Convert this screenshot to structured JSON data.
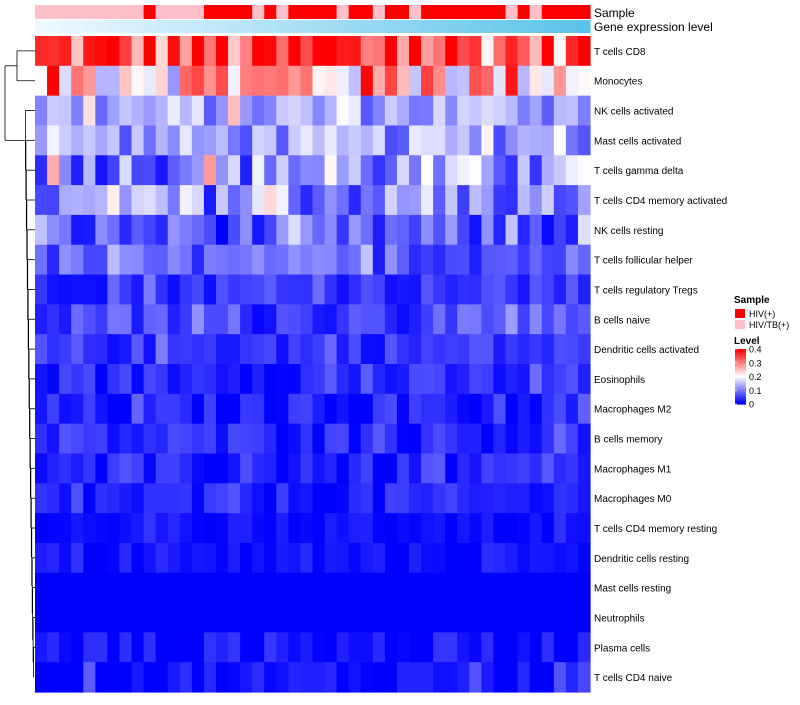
{
  "chart_data": {
    "type": "heatmap",
    "annotation_labels": {
      "sample": "Sample",
      "expression": "Gene expression level"
    },
    "rows": [
      "T cells CD8",
      "Monocytes",
      "NK cells activated",
      "Mast cells activated",
      "T cells gamma delta",
      "T cells CD4 memory activated",
      "NK cells resting",
      "T cells follicular helper",
      "T cells regulatory  Tregs",
      "B cells naive",
      "Dendritic cells activated",
      "Eosinophils",
      "Macrophages M2",
      "B cells memory",
      "Macrophages M1",
      "Macrophages M0",
      "T cells CD4 memory resting",
      "Dendritic cells resting",
      "Mast cells resting",
      "Neutrophils",
      "Plasma cells",
      "T cells CD4 naive"
    ],
    "n_columns": 46,
    "sample_groups": [
      "HIV/TB(+)",
      "HIV/TB(+)",
      "HIV/TB(+)",
      "HIV/TB(+)",
      "HIV/TB(+)",
      "HIV/TB(+)",
      "HIV/TB(+)",
      "HIV/TB(+)",
      "HIV/TB(+)",
      "HIV(+)",
      "HIV/TB(+)",
      "HIV/TB(+)",
      "HIV/TB(+)",
      "HIV/TB(+)",
      "HIV(+)",
      "HIV(+)",
      "HIV(+)",
      "HIV(+)",
      "HIV/TB(+)",
      "HIV(+)",
      "HIV/TB(+)",
      "HIV(+)",
      "HIV(+)",
      "HIV(+)",
      "HIV(+)",
      "HIV/TB(+)",
      "HIV(+)",
      "HIV(+)",
      "HIV/TB(+)",
      "HIV(+)",
      "HIV(+)",
      "HIV/TB(+)",
      "HIV(+)",
      "HIV(+)",
      "HIV(+)",
      "HIV(+)",
      "HIV(+)",
      "HIV(+)",
      "HIV(+)",
      "HIV/TB(+)",
      "HIV(+)",
      "HIV/TB(+)",
      "HIV(+)",
      "HIV(+)",
      "HIV(+)",
      "HIV(+)"
    ],
    "legend": {
      "sample_title": "Sample",
      "sample_items": [
        {
          "label": "HIV(+)",
          "color": "#ff0000"
        },
        {
          "label": "HIV/TB(+)",
          "color": "#ffc0cb"
        }
      ],
      "level_title": "Level",
      "level_ticks": [
        {
          "label": "0.4",
          "value": 0.4
        },
        {
          "label": "0.3",
          "value": 0.3
        },
        {
          "label": "0.2",
          "value": 0.2
        },
        {
          "label": "0.1",
          "value": 0.1
        },
        {
          "label": "0",
          "value": 0.0
        }
      ],
      "value_range": [
        0,
        0.4
      ]
    },
    "colors": {
      "low": "#0000ff",
      "mid": "#ffffff",
      "high": "#ff0000"
    },
    "row_mean_levels": [
      0.33,
      0.26,
      0.13,
      0.12,
      0.11,
      0.1,
      0.06,
      0.07,
      0.04,
      0.05,
      0.04,
      0.03,
      0.02,
      0.03,
      0.02,
      0.02,
      0.01,
      0.01,
      0.0,
      0.0,
      0.01,
      0.01
    ],
    "row_spread": [
      0.08,
      0.09,
      0.04,
      0.04,
      0.06,
      0.05,
      0.04,
      0.03,
      0.02,
      0.03,
      0.02,
      0.02,
      0.02,
      0.02,
      0.02,
      0.02,
      0.01,
      0.01,
      0.0,
      0.0,
      0.02,
      0.02
    ]
  }
}
